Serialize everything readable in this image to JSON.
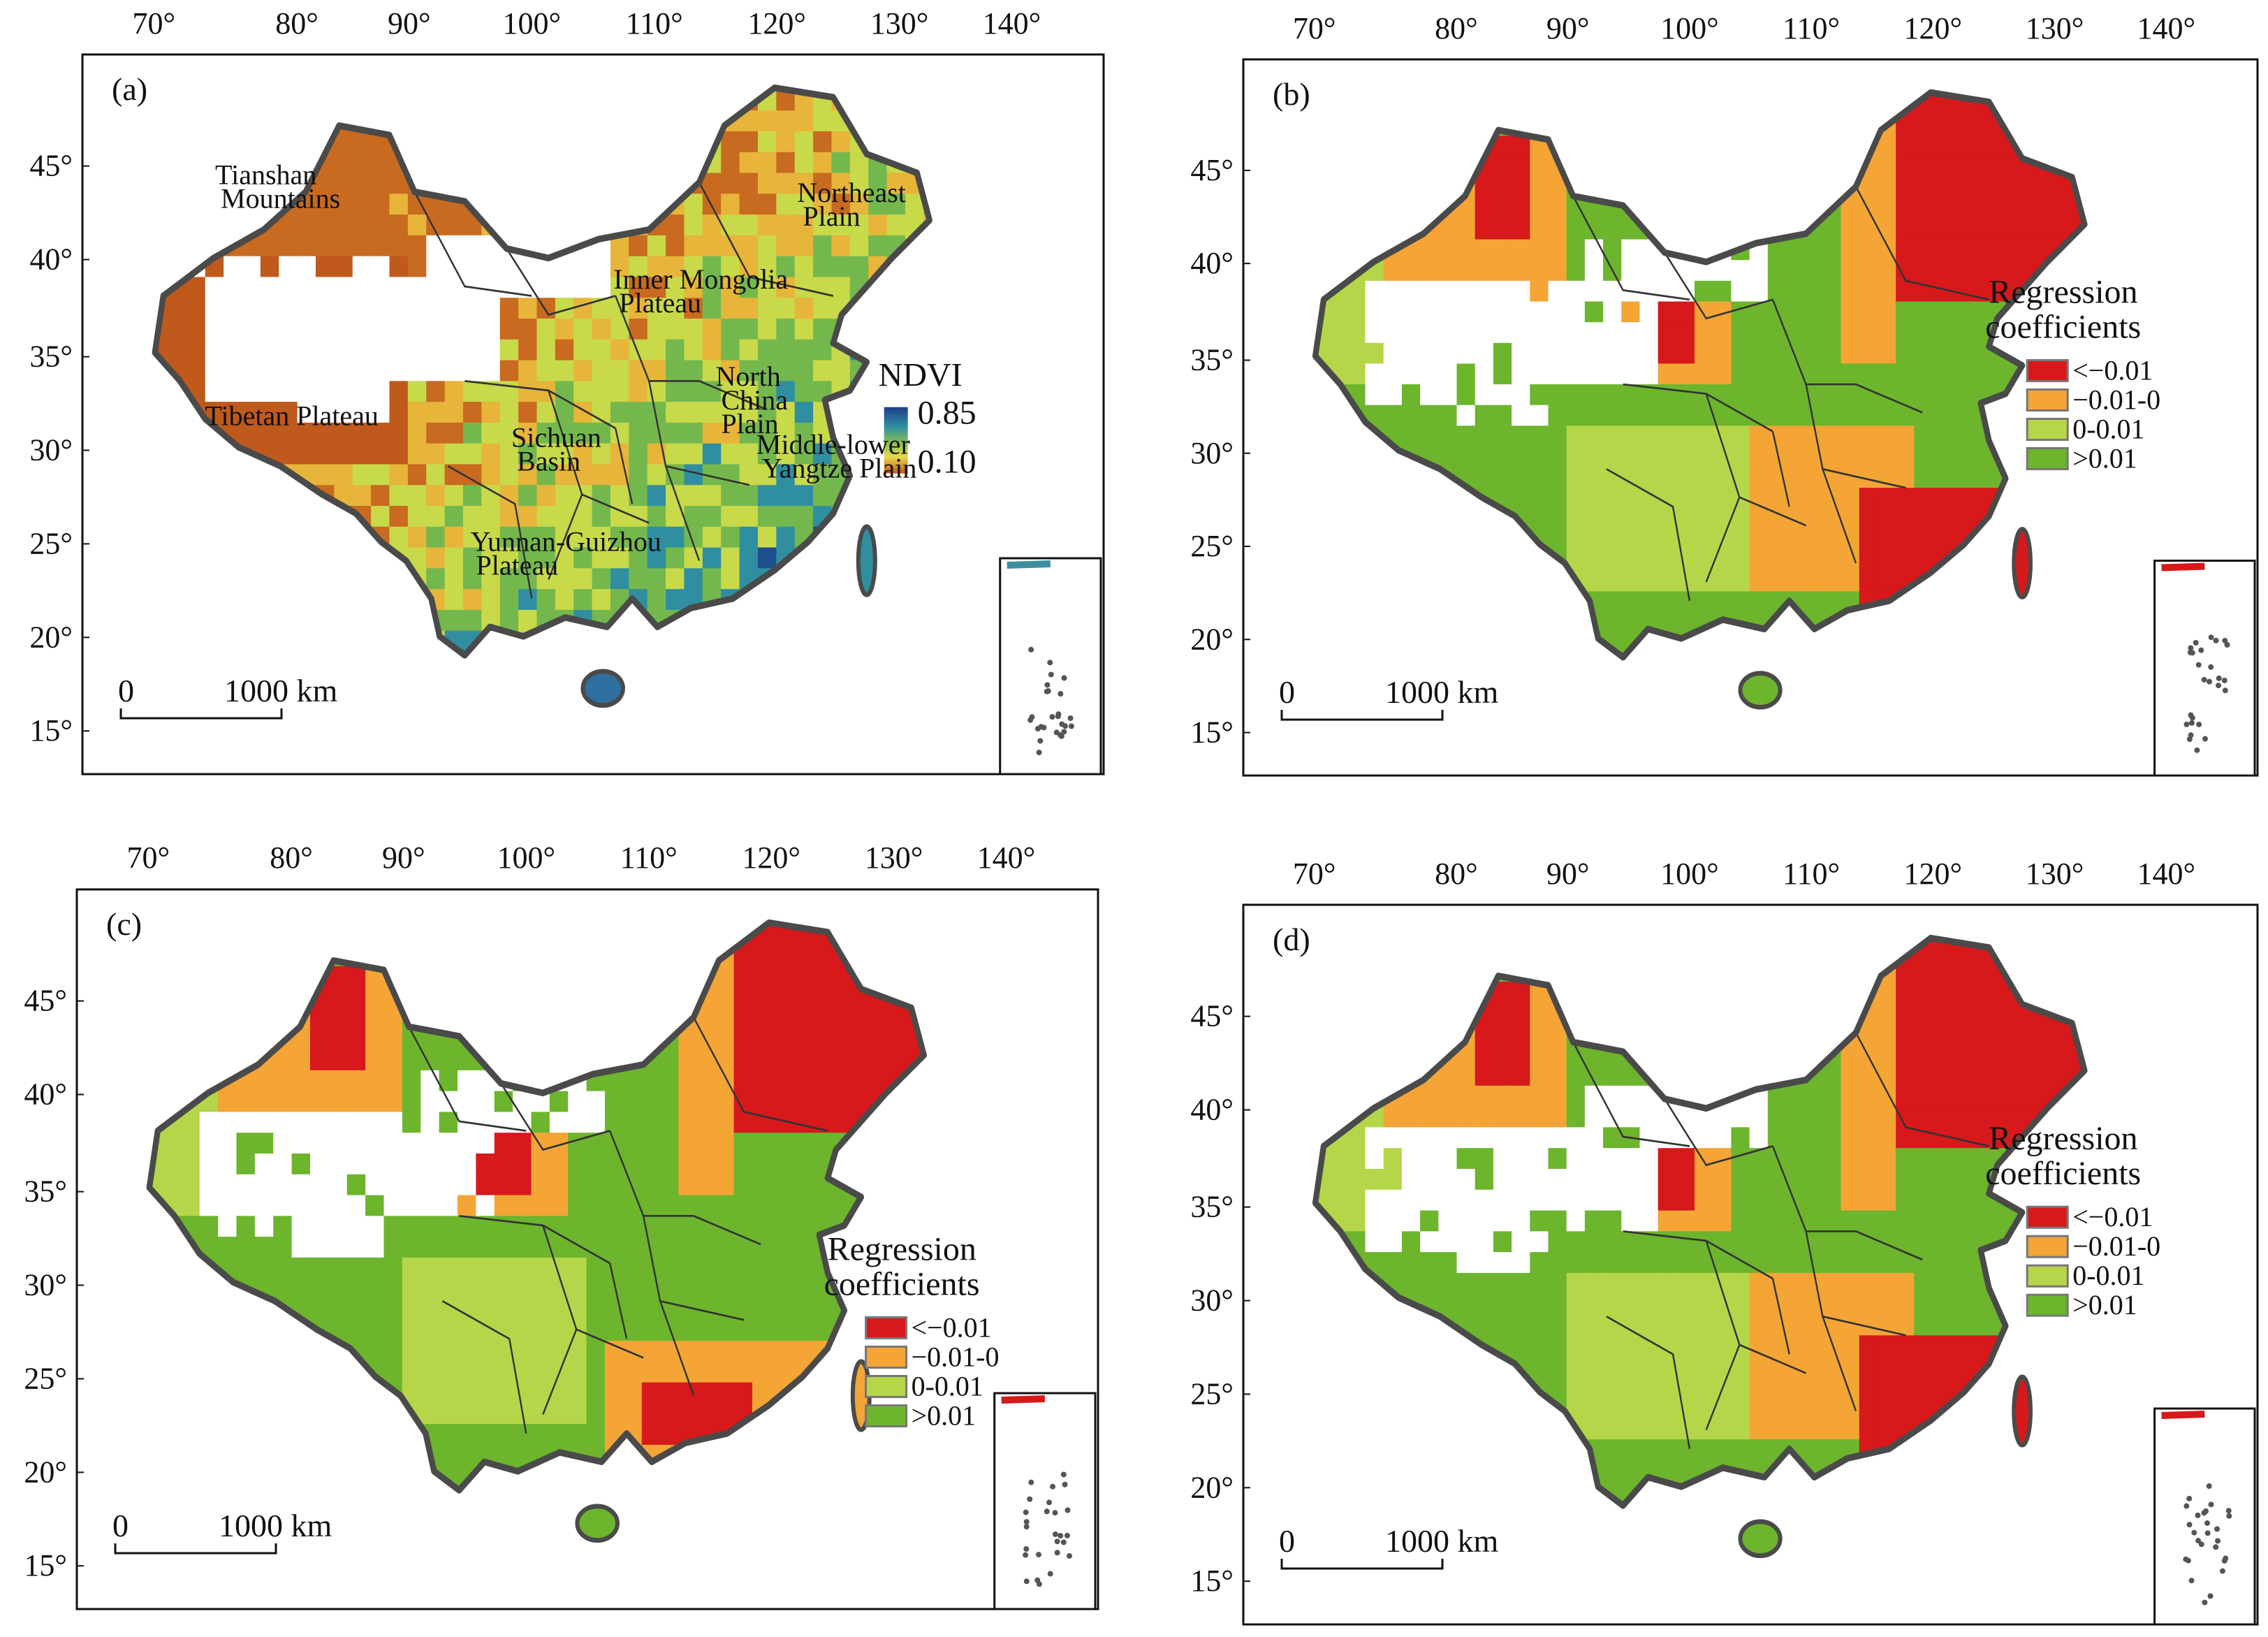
{
  "figure": {
    "lon_ticks": [
      "70°",
      "80°",
      "90°",
      "100°",
      "110°",
      "120°",
      "130°",
      "140°"
    ],
    "lat_ticks": [
      "45°",
      "40°",
      "35°",
      "30°",
      "25°",
      "20°",
      "15°"
    ],
    "scale_bar": {
      "start": "0",
      "end": "1000 km"
    },
    "panels": [
      {
        "label": "(a)",
        "legend_type": "gradient",
        "legend": {
          "title": "NDVI",
          "max": "0.85",
          "min": "0.10"
        },
        "regions": [
          {
            "lines": [
              "Tianshan",
              "Mountains"
            ]
          },
          {
            "lines": [
              "Northeast",
              "Plain"
            ]
          },
          {
            "lines": [
              "Inner Mongolia",
              "Plateau"
            ]
          },
          {
            "lines": [
              "North",
              "China",
              "Plain"
            ]
          },
          {
            "lines": [
              "Tibetan Plateau"
            ]
          },
          {
            "lines": [
              "Sichuan",
              "Basin"
            ]
          },
          {
            "lines": [
              "Middle-lower",
              "Yangtze Plain"
            ]
          },
          {
            "lines": [
              "Yunnan-Guizhou",
              "Plateau"
            ]
          }
        ]
      },
      {
        "label": "(b)",
        "legend_type": "classes",
        "legend": {
          "title_lines": [
            "Regression",
            "coefficients"
          ],
          "items": [
            {
              "label": "<−0.01",
              "color": "#d7191c"
            },
            {
              "label": "−0.01-0",
              "color": "#f4a535"
            },
            {
              "label": "0-0.01",
              "color": "#b5d648"
            },
            {
              "label": ">0.01",
              "color": "#6cb52d"
            }
          ]
        }
      },
      {
        "label": "(c)",
        "legend_type": "classes",
        "legend": {
          "title_lines": [
            "Regression",
            "coefficients"
          ],
          "items": [
            {
              "label": "<−0.01",
              "color": "#d7191c"
            },
            {
              "label": "−0.01-0",
              "color": "#f4a535"
            },
            {
              "label": "0-0.01",
              "color": "#b5d648"
            },
            {
              "label": ">0.01",
              "color": "#6cb52d"
            }
          ]
        }
      },
      {
        "label": "(d)",
        "legend_type": "classes",
        "legend": {
          "title_lines": [
            "Regression",
            "coefficients"
          ],
          "items": [
            {
              "label": "<−0.01",
              "color": "#d7191c"
            },
            {
              "label": "−0.01-0",
              "color": "#f4a535"
            },
            {
              "label": "0-0.01",
              "color": "#b5d648"
            },
            {
              "label": ">0.01",
              "color": "#6cb52d"
            }
          ]
        }
      }
    ]
  },
  "colors": {
    "ndvi_high": "#1f4e8c",
    "ndvi_mid": "#d9e04a",
    "ndvi_low": "#c0591c",
    "red": "#d7191c",
    "orange": "#f4a535",
    "light_green": "#b5d648",
    "green": "#6cb52d",
    "border": "#4a4a4a"
  }
}
